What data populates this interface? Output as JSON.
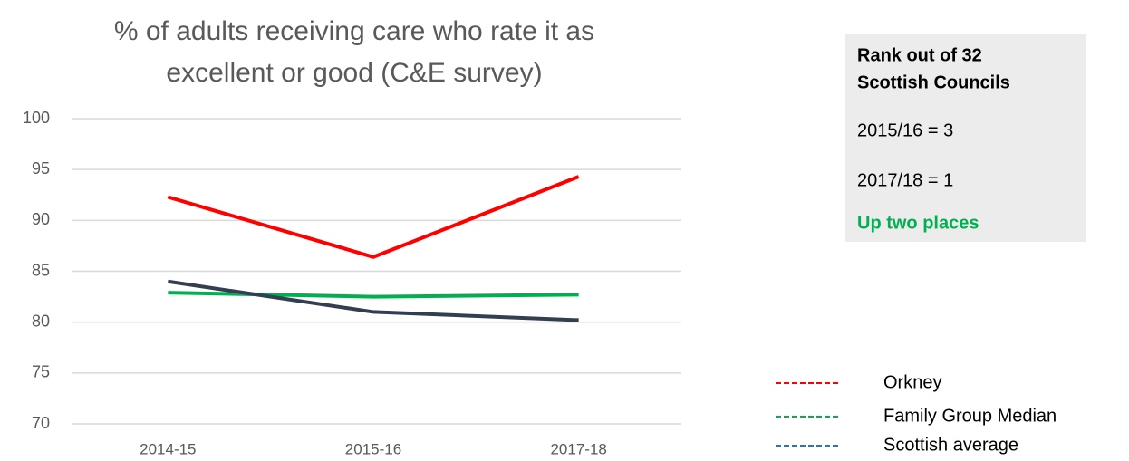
{
  "chart_data": {
    "type": "line",
    "title": [
      "% of adults receiving care who rate it as",
      "excellent or good (C&E survey)"
    ],
    "categories": [
      "2014-15",
      "2015-16",
      "2017-18"
    ],
    "series": [
      {
        "name": "Orkney",
        "color": "#ff0000",
        "legend_color": "#ff0000",
        "values": [
          92.3,
          86.4,
          94.3
        ]
      },
      {
        "name": "Family Group Median",
        "color": "#00b050",
        "legend_color": "#00b050",
        "values": [
          82.9,
          82.5,
          82.7
        ]
      },
      {
        "name": "Scottish average",
        "color": "#333f50",
        "legend_color": "#2e75b6",
        "values": [
          84.0,
          81.0,
          80.2
        ]
      }
    ],
    "ylim": [
      70,
      100
    ],
    "yticks": [
      70,
      75,
      80,
      85,
      90,
      95,
      100
    ],
    "grid": true
  },
  "info_box": {
    "heading": [
      "Rank out of 32",
      "Scottish Councils"
    ],
    "lines": [
      "2015/16 = 3",
      "2017/18 = 1"
    ],
    "note": "Up two places"
  }
}
